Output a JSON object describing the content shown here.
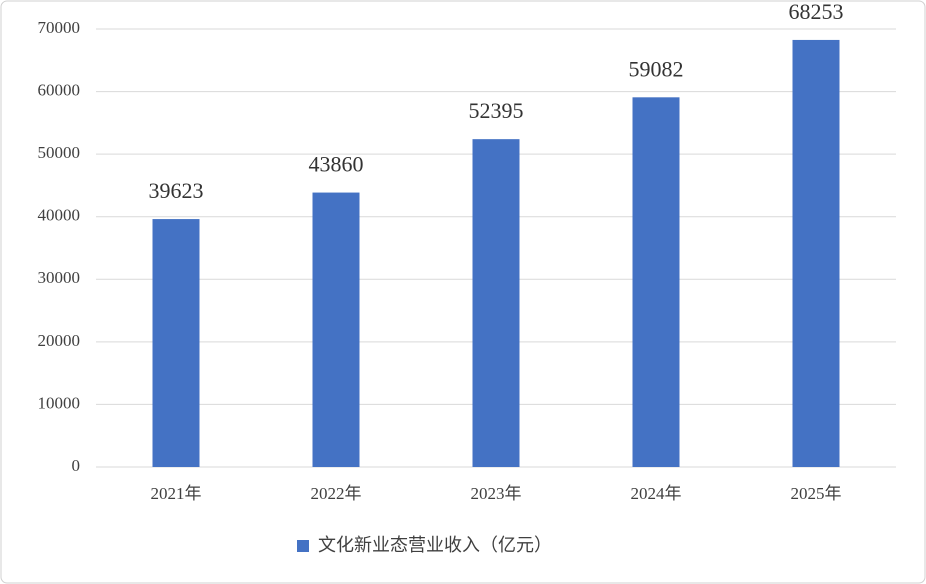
{
  "chart_data": {
    "type": "bar",
    "categories": [
      "2021年",
      "2022年",
      "2023年",
      "2024年",
      "2025年"
    ],
    "series": [
      {
        "name": "文化新业态营业收入（亿元）",
        "color": "#4472c4",
        "values": [
          39623,
          43860,
          52395,
          59082,
          68253
        ]
      }
    ],
    "ylim": [
      0,
      70000
    ],
    "yticks": [
      0,
      10000,
      20000,
      30000,
      40000,
      50000,
      60000,
      70000
    ],
    "grid": true,
    "legend": "bottom"
  }
}
